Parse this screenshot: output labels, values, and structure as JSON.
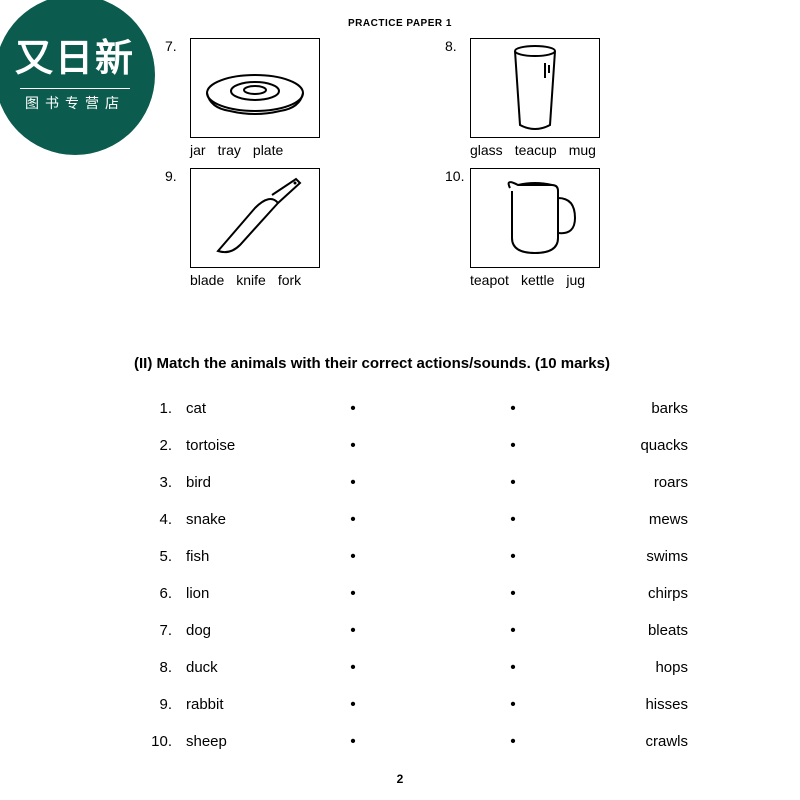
{
  "header": "PRACTICE PAPER 1",
  "badge": {
    "line1": "又日新",
    "line2": "图书专营店",
    "bg": "#0b5c4e"
  },
  "pictures": [
    {
      "num": "7.",
      "words": [
        "jar",
        "tray",
        "plate"
      ],
      "svg": "plate"
    },
    {
      "num": "8.",
      "words": [
        "glass",
        "teacup",
        "mug"
      ],
      "svg": "glass"
    },
    {
      "num": "9.",
      "words": [
        "blade",
        "knife",
        "fork"
      ],
      "svg": "knife"
    },
    {
      "num": "10.",
      "words": [
        "teapot",
        "kettle",
        "jug"
      ],
      "svg": "jug"
    }
  ],
  "section2": "(II)  Match the animals with their correct actions/sounds. (10 marks)",
  "match": {
    "left": [
      "cat",
      "tortoise",
      "bird",
      "snake",
      "fish",
      "lion",
      "dog",
      "duck",
      "rabbit",
      "sheep"
    ],
    "right": [
      "barks",
      "quacks",
      "roars",
      "mews",
      "swims",
      "chirps",
      "bleats",
      "hops",
      "hisses",
      "crawls"
    ]
  },
  "pagenum": "2",
  "svgs": {
    "plate": "<svg width='110' height='70' viewBox='0 0 110 70'><ellipse cx='55' cy='40' rx='48' ry='18' fill='none' stroke='#000' stroke-width='2'/><ellipse cx='55' cy='38' rx='24' ry='9' fill='none' stroke='#000' stroke-width='2'/><ellipse cx='55' cy='37' rx='11' ry='4' fill='none' stroke='#000' stroke-width='2'/><path d='M7 40 Q 10 55 30 58' fill='none' stroke='#000' stroke-width='2'/><path d='M103 40 Q 100 55 80 58' fill='none' stroke='#000' stroke-width='2'/><path d='M30 58 Q 55 64 80 58' fill='none' stroke='#000' stroke-width='2'/></svg>",
    "glass": "<svg width='70' height='90' viewBox='0 0 70 90'><path d='M15 8 L20 82 Q35 90 50 82 L55 8' fill='none' stroke='#000' stroke-width='2'/><ellipse cx='35' cy='8' rx='20' ry='5' fill='none' stroke='#000' stroke-width='2'/><line x1='45' y1='20' x2='45' y2='35' stroke='#000' stroke-width='2'/><line x1='49' y1='22' x2='49' y2='30' stroke='#000' stroke-width='2'/></svg>",
    "knife": "<svg width='110' height='90' viewBox='0 0 110 90'><path d='M18 78 L55 35 Q70 20 78 30 L40 72 Q30 82 18 78 Z' fill='none' stroke='#000' stroke-width='2'/><path d='M72 22 L96 6 L100 10 L78 30' fill='none' stroke='#000' stroke-width='2'/><circle cx='95' cy='10' r='1.5' fill='#000'/></svg>",
    "jug": "<svg width='90' height='90' viewBox='0 0 90 90'><path d='M20 15 Q15 5 28 12 L62 12 Q68 12 68 18 L68 65 Q68 80 45 80 Q22 80 22 65 L22 18' fill='none' stroke='#000' stroke-width='2'/><path d='M28 12 Q45 8 62 12' fill='none' stroke='#000' stroke-width='2'/><path d='M68 25 Q85 25 85 45 Q85 62 68 60' fill='none' stroke='#000' stroke-width='2'/></svg>"
  }
}
